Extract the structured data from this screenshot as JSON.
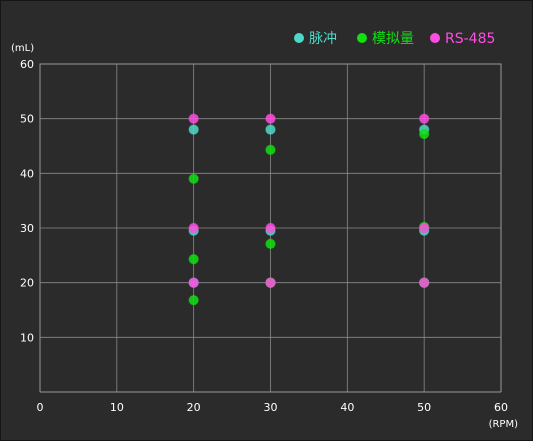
{
  "chart_data": {
    "type": "scatter",
    "title": "",
    "xlabel": "",
    "ylabel": "",
    "x_unit": "(RPM)",
    "y_unit": "(mL)",
    "xlim": [
      0,
      60
    ],
    "ylim": [
      0,
      60
    ],
    "xticks": [
      0,
      10,
      20,
      30,
      40,
      50,
      60
    ],
    "yticks": [
      10,
      20,
      30,
      40,
      50,
      60
    ],
    "grid": true,
    "legend_position": "top-right",
    "series": [
      {
        "name": "脉冲",
        "color": "#4dd9c9",
        "points": [
          {
            "x": 20,
            "y": 48
          },
          {
            "x": 20,
            "y": 29.5
          },
          {
            "x": 20,
            "y": 20
          },
          {
            "x": 30,
            "y": 48
          },
          {
            "x": 30,
            "y": 29.5
          },
          {
            "x": 30,
            "y": 20
          },
          {
            "x": 50,
            "y": 48
          },
          {
            "x": 50,
            "y": 29.5
          },
          {
            "x": 50,
            "y": 20
          }
        ]
      },
      {
        "name": "模拟量",
        "color": "#11e011",
        "points": [
          {
            "x": 20,
            "y": 39
          },
          {
            "x": 20,
            "y": 24.3
          },
          {
            "x": 20,
            "y": 16.8
          },
          {
            "x": 30,
            "y": 44.3
          },
          {
            "x": 30,
            "y": 27.1
          },
          {
            "x": 30,
            "y": 20
          },
          {
            "x": 50,
            "y": 47.2
          },
          {
            "x": 50,
            "y": 30.2
          },
          {
            "x": 50,
            "y": 20
          }
        ]
      },
      {
        "name": "RS-485",
        "color": "#ff4de1",
        "points": [
          {
            "x": 20,
            "y": 50
          },
          {
            "x": 20,
            "y": 30
          },
          {
            "x": 20,
            "y": 20
          },
          {
            "x": 30,
            "y": 50
          },
          {
            "x": 30,
            "y": 30
          },
          {
            "x": 30,
            "y": 20
          },
          {
            "x": 50,
            "y": 50
          },
          {
            "x": 50,
            "y": 30
          },
          {
            "x": 50,
            "y": 20
          }
        ]
      }
    ]
  }
}
